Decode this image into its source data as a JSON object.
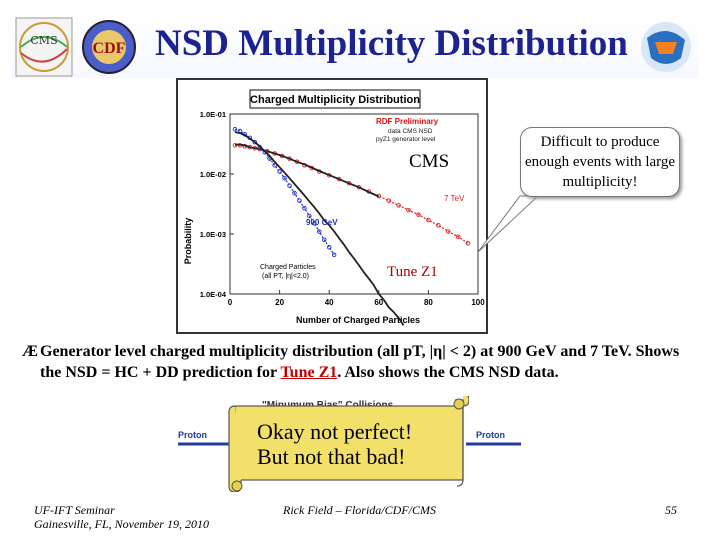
{
  "slide": {
    "title": "NSD Multiplicity Distribution",
    "cms_logo_text": "CMS",
    "cdf_logo_text": "CDF"
  },
  "chart_data": {
    "type": "scatter",
    "title": "Charged Multiplicity Distribution",
    "xlabel": "Number of Charged Particles",
    "ylabel": "Probability",
    "xlim": [
      0,
      100
    ],
    "ylim": [
      0.0001,
      0.1
    ],
    "y_log_scale": true,
    "x_ticks": [
      "0",
      "20",
      "40",
      "60",
      "80",
      "100"
    ],
    "y_ticks": [
      "1.0E-01",
      "1.0E-02",
      "1.0E-03",
      "1.0E-04"
    ],
    "legend": [
      "RDF Preliminary",
      "data CMS NSD",
      "pyZ1 generator level"
    ],
    "legend_colors": [
      "#e01010",
      "#222222",
      "#222222"
    ],
    "annotations": [
      "7 TeV",
      "900 GeV",
      "Charged Particles",
      "(all PT, |η|<2.0)"
    ],
    "series": [
      {
        "name": "7 TeV",
        "color": "#e02020",
        "x": [
          2,
          4,
          6,
          8,
          10,
          12,
          15,
          18,
          21,
          24,
          27,
          30,
          33,
          36,
          40,
          44,
          48,
          52,
          56,
          60,
          64,
          68,
          72,
          76,
          80,
          84,
          88,
          92,
          96
        ],
        "y": [
          0.03,
          0.03,
          0.029,
          0.028,
          0.027,
          0.026,
          0.024,
          0.022,
          0.02,
          0.018,
          0.016,
          0.014,
          0.0125,
          0.011,
          0.0095,
          0.0082,
          0.007,
          0.006,
          0.0051,
          0.0043,
          0.0036,
          0.003,
          0.0025,
          0.0021,
          0.0017,
          0.0014,
          0.0011,
          0.0009,
          0.0007
        ]
      },
      {
        "name": "7 TeV CMS",
        "color": "#222222",
        "x": [
          2,
          4,
          6,
          8,
          10,
          12,
          15,
          18,
          21,
          24,
          27,
          30,
          33,
          36,
          40,
          44,
          48,
          52,
          56,
          60
        ],
        "y": [
          0.031,
          0.031,
          0.03,
          0.028,
          0.027,
          0.026,
          0.024,
          0.022,
          0.02,
          0.018,
          0.016,
          0.0145,
          0.0128,
          0.0112,
          0.0096,
          0.0082,
          0.007,
          0.006,
          0.005,
          0.0042
        ]
      },
      {
        "name": "900 GeV",
        "color": "#2233cc",
        "x": [
          2,
          4,
          6,
          8,
          10,
          12,
          14,
          16,
          18,
          20,
          22,
          24,
          26,
          28,
          30,
          32,
          34,
          36,
          38,
          40,
          42
        ],
        "y": [
          0.056,
          0.052,
          0.046,
          0.04,
          0.034,
          0.028,
          0.023,
          0.018,
          0.014,
          0.011,
          0.0085,
          0.0064,
          0.0048,
          0.0036,
          0.0027,
          0.002,
          0.0015,
          0.0011,
          0.0008,
          0.0006,
          0.00045
        ]
      },
      {
        "name": "900 GeV CMS",
        "color": "#222222",
        "x": [
          2,
          4,
          6,
          8,
          10,
          12,
          14,
          16,
          18,
          20,
          22,
          24,
          26,
          28,
          30,
          32,
          34,
          36,
          38,
          40,
          42,
          44,
          46,
          48,
          50,
          52,
          54,
          56,
          58,
          60,
          62,
          64,
          66,
          68,
          70
        ],
        "y": [
          0.05,
          0.048,
          0.044,
          0.039,
          0.034,
          0.029,
          0.024,
          0.02,
          0.016,
          0.013,
          0.0105,
          0.0085,
          0.0068,
          0.0055,
          0.0044,
          0.0035,
          0.0028,
          0.0022,
          0.0017,
          0.0014,
          0.0011,
          0.00085,
          0.00066,
          0.0005,
          0.00039,
          0.0003,
          0.00023,
          0.00018,
          0.00014,
          0.0001,
          8e-05,
          6e-05,
          5e-05,
          4e-05,
          3e-05
        ]
      }
    ]
  },
  "labels": {
    "cms": "CMS",
    "tune_z1": "Tune Z1",
    "callout": "Difficult to produce enough events with large multiplicity!"
  },
  "bullet": {
    "symbol": "Æ",
    "text_1": "Generator level charged multiplicity distribution (all pT, |η| < 2) at 900 GeV and 7 TeV.  Shows the NSD = HC + DD prediction for ",
    "tune": "Tune Z1",
    "text_2": ".  Also shows the CMS NSD data."
  },
  "background_figure": {
    "title": "\"Minumum Bias\" Collisions",
    "left_label": "Proton",
    "right_label": "Proton"
  },
  "scroll": {
    "line1": "Okay not perfect!",
    "line2": "But not that bad!"
  },
  "footer": {
    "line1": "UF-IFT Seminar",
    "line2": "Gainesville, FL,  November 19, 2010",
    "author": "Rick Field – Florida/CDF/CMS",
    "page": "55"
  }
}
